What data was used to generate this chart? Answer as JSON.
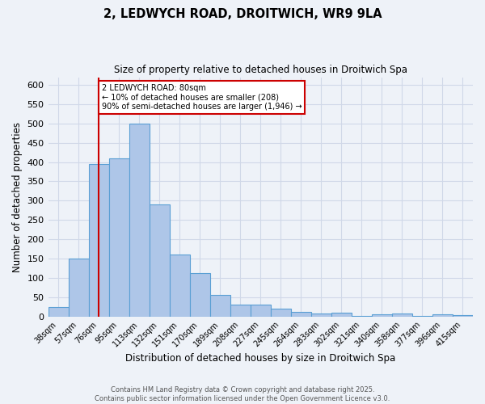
{
  "title_line1": "2, LEDWYCH ROAD, DROITWICH, WR9 9LA",
  "title_line2": "Size of property relative to detached houses in Droitwich Spa",
  "xlabel": "Distribution of detached houses by size in Droitwich Spa",
  "ylabel": "Number of detached properties",
  "bar_labels": [
    "38sqm",
    "57sqm",
    "76sqm",
    "95sqm",
    "113sqm",
    "132sqm",
    "151sqm",
    "170sqm",
    "189sqm",
    "208sqm",
    "227sqm",
    "245sqm",
    "264sqm",
    "283sqm",
    "302sqm",
    "321sqm",
    "340sqm",
    "358sqm",
    "377sqm",
    "396sqm",
    "415sqm"
  ],
  "bar_values": [
    25,
    150,
    395,
    410,
    500,
    290,
    160,
    112,
    55,
    30,
    30,
    20,
    12,
    7,
    10,
    2,
    5,
    7,
    2,
    5,
    4
  ],
  "bar_color": "#aec6e8",
  "bar_edge_color": "#5a9fd4",
  "grid_color": "#d0d8e8",
  "bg_color": "#eef2f8",
  "vline_x_index": 2,
  "vline_color": "#cc0000",
  "annotation_text": "2 LEDWYCH ROAD: 80sqm\n← 10% of detached houses are smaller (208)\n90% of semi-detached houses are larger (1,946) →",
  "annotation_box_color": "#ffffff",
  "annotation_box_edge_color": "#cc0000",
  "footer_text": "Contains HM Land Registry data © Crown copyright and database right 2025.\nContains public sector information licensed under the Open Government Licence v3.0.",
  "ylim": [
    0,
    620
  ],
  "yticks": [
    0,
    50,
    100,
    150,
    200,
    250,
    300,
    350,
    400,
    450,
    500,
    550,
    600
  ],
  "figsize": [
    6.0,
    5.0
  ],
  "dpi": 100
}
